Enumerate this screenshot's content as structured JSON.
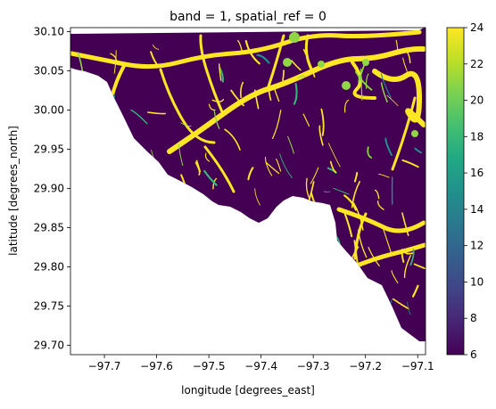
{
  "chart_data": {
    "type": "heatmap",
    "title": "band = 1, spatial_ref = 0",
    "xlabel": "longitude [degrees_east]",
    "ylabel": "latitude [degrees_north]",
    "xlim": [
      -97.765,
      -97.085
    ],
    "ylim": [
      29.688,
      30.105
    ],
    "xticks": [
      -97.7,
      -97.6,
      -97.5,
      -97.4,
      -97.3,
      -97.2,
      -97.1
    ],
    "xtick_labels": [
      "−97.7",
      "−97.6",
      "−97.5",
      "−97.4",
      "−97.3",
      "−97.2",
      "−97.1"
    ],
    "yticks": [
      30.1,
      30.05,
      30.0,
      29.95,
      29.9,
      29.85,
      29.8,
      29.75,
      29.7
    ],
    "ytick_labels": [
      "30.10",
      "30.05",
      "30.00",
      "29.95",
      "29.90",
      "29.85",
      "29.80",
      "29.75",
      "29.70"
    ],
    "colorbar": {
      "range": [
        6,
        24
      ],
      "ticks": [
        6,
        8,
        10,
        12,
        14,
        16,
        18,
        20,
        22,
        24
      ],
      "tick_labels": [
        "6",
        "8",
        "10",
        "12",
        "14",
        "16",
        "18",
        "20",
        "22",
        "24"
      ],
      "colormap": "viridis"
    },
    "colors": {
      "background_value": "#440154",
      "stream_value": "#fde725",
      "mid_value_1": "#8fd744",
      "mid_value_2": "#35b779",
      "mid_value_3": "#21918c"
    }
  }
}
